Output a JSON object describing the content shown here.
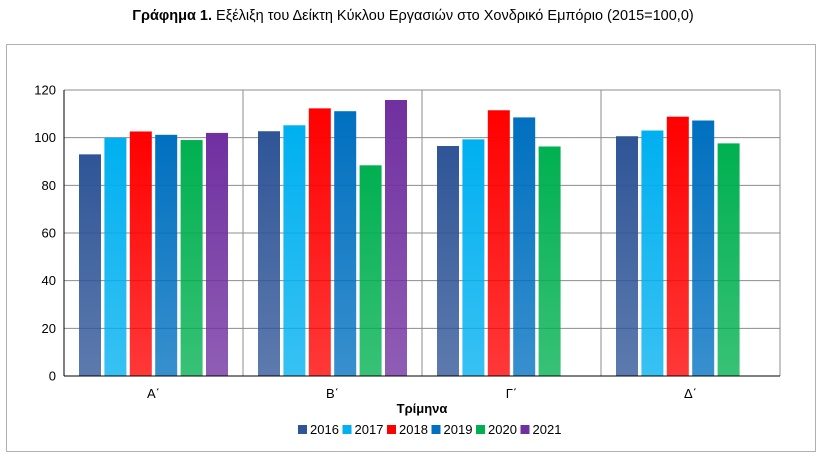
{
  "title": {
    "bold": "Γράφημα 1.",
    "rest": " Εξέλιξη του Δείκτη Κύκλου Εργασιών στο Χονδρικό Εμπόριο (2015=100,0)"
  },
  "chart_data": {
    "type": "bar",
    "categories": [
      "Α΄",
      "Β΄",
      "Γ΄",
      "Δ΄"
    ],
    "xlabel": "Τρίμηνα",
    "ylabel": "",
    "ylim": [
      0,
      120
    ],
    "yticks": [
      0,
      20,
      40,
      60,
      80,
      100,
      120
    ],
    "grid": true,
    "legend": "bottom",
    "series": [
      {
        "name": "2016",
        "color": "#2f5597",
        "values": [
          93.0,
          102.7,
          96.5,
          100.6
        ]
      },
      {
        "name": "2017",
        "color": "#00b0f0",
        "values": [
          100.0,
          105.2,
          99.3,
          103.0
        ]
      },
      {
        "name": "2018",
        "color": "#ff0000",
        "values": [
          102.6,
          112.3,
          111.5,
          108.8
        ]
      },
      {
        "name": "2019",
        "color": "#0070c0",
        "values": [
          101.2,
          111.1,
          108.5,
          107.2
        ]
      },
      {
        "name": "2020",
        "color": "#00b050",
        "values": [
          99.0,
          88.4,
          96.3,
          97.6
        ]
      },
      {
        "name": "2021",
        "color": "#7030a0",
        "values": [
          102.0,
          115.8,
          null,
          null
        ]
      }
    ]
  }
}
